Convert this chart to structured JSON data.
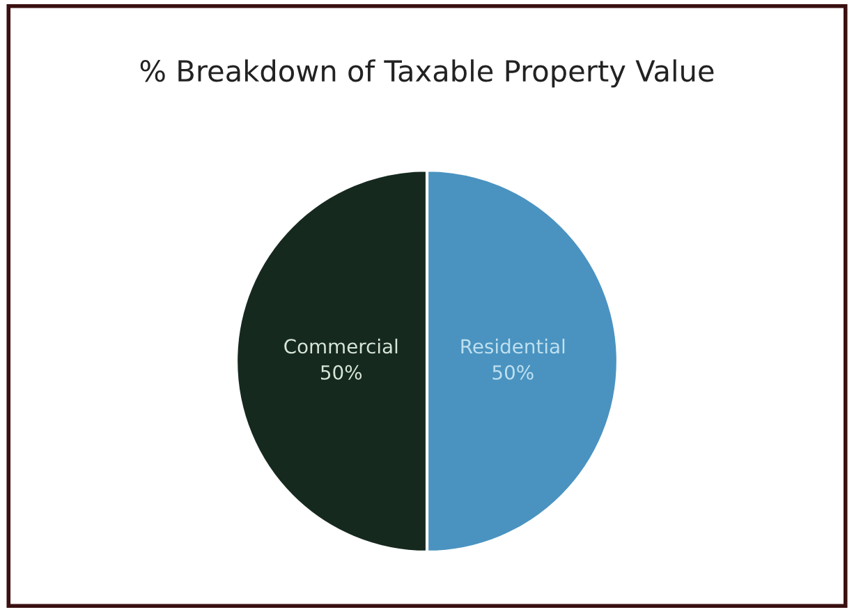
{
  "chart_data": {
    "type": "pie",
    "title": "% Breakdown of Taxable Property Value",
    "categories": [
      "Residential",
      "Commercial"
    ],
    "values": [
      50,
      50
    ],
    "value_labels": [
      "50%",
      "50%"
    ],
    "colors": [
      "#4a93c0",
      "#16291f"
    ],
    "legend": false
  }
}
